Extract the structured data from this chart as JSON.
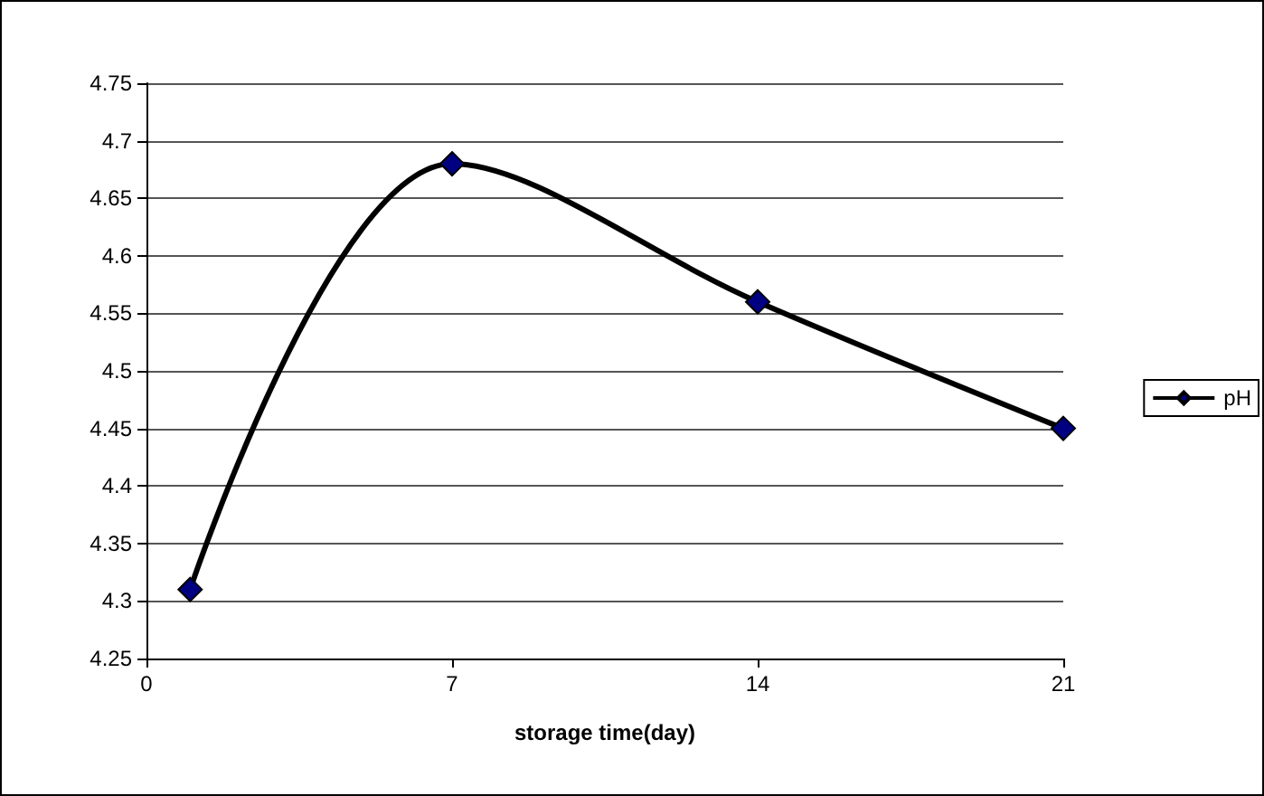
{
  "chart_data": {
    "type": "line",
    "xlabel": "storage time(day)",
    "x": [
      1,
      7,
      14,
      21
    ],
    "series": [
      {
        "name": "pH",
        "color": "#000080",
        "values": [
          4.31,
          4.68,
          4.56,
          4.45
        ]
      }
    ],
    "xlim": [
      0,
      21
    ],
    "xticks": [
      0,
      7,
      14,
      21
    ],
    "ylim": [
      4.25,
      4.75
    ],
    "yticks": [
      4.25,
      4.3,
      4.35,
      4.4,
      4.45,
      4.5,
      4.55,
      4.6,
      4.65,
      4.7,
      4.75
    ],
    "grid": "y",
    "legend": "right",
    "marker": "diamond",
    "line_style": "solid"
  }
}
